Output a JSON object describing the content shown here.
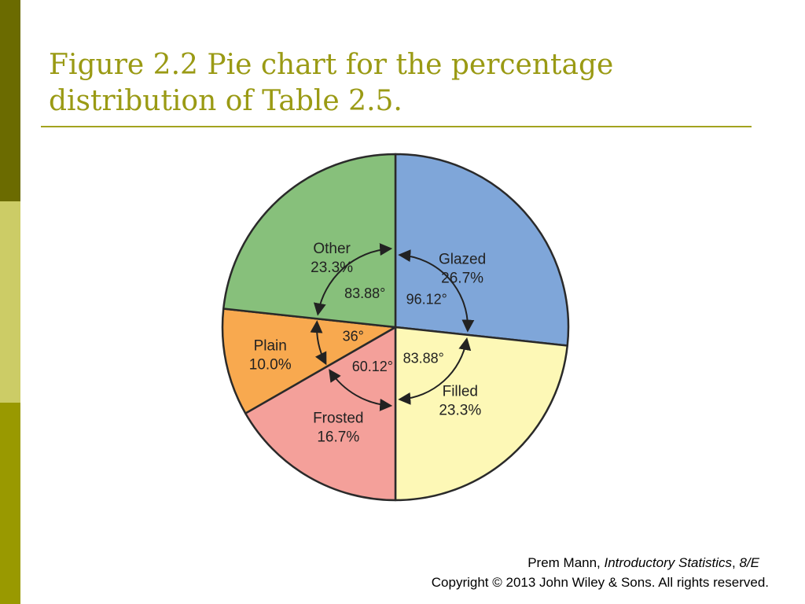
{
  "colors": {
    "bar_top": "#6b6b00",
    "bar_mid": "#cccc66",
    "bar_bot": "#999900",
    "title": "#9a9a14",
    "rule": "#a3a31f"
  },
  "slide": {
    "title_line1": "Figure 2.2 Pie chart for the percentage",
    "title_line2": "distribution of Table 2.5."
  },
  "footer": {
    "author": "Prem Mann, ",
    "book": "Introductory Statistics",
    "sep": ", ",
    "edition": "8/E",
    "copyright": "Copyright © 2013 John Wiley & Sons. All rights reserved."
  },
  "chart_data": {
    "type": "pie",
    "start_angle_deg": 0,
    "direction": "clockwise",
    "slices": [
      {
        "label": "Glazed",
        "value": 26.7,
        "value_label": "26.7%",
        "angle_label": "96.12°",
        "color": "#7fa6d9"
      },
      {
        "label": "Filled",
        "value": 23.3,
        "value_label": "23.3%",
        "angle_label": "83.88°",
        "color": "#fdf8b6"
      },
      {
        "label": "Frosted",
        "value": 16.7,
        "value_label": "16.7%",
        "angle_label": "60.12°",
        "color": "#f4a09a"
      },
      {
        "label": "Plain",
        "value": 10.0,
        "value_label": "10.0%",
        "angle_label": "36°",
        "color": "#f8a94f"
      },
      {
        "label": "Other",
        "value": 23.3,
        "value_label": "23.3%",
        "angle_label": "83.88°",
        "color": "#87c07b"
      }
    ]
  }
}
